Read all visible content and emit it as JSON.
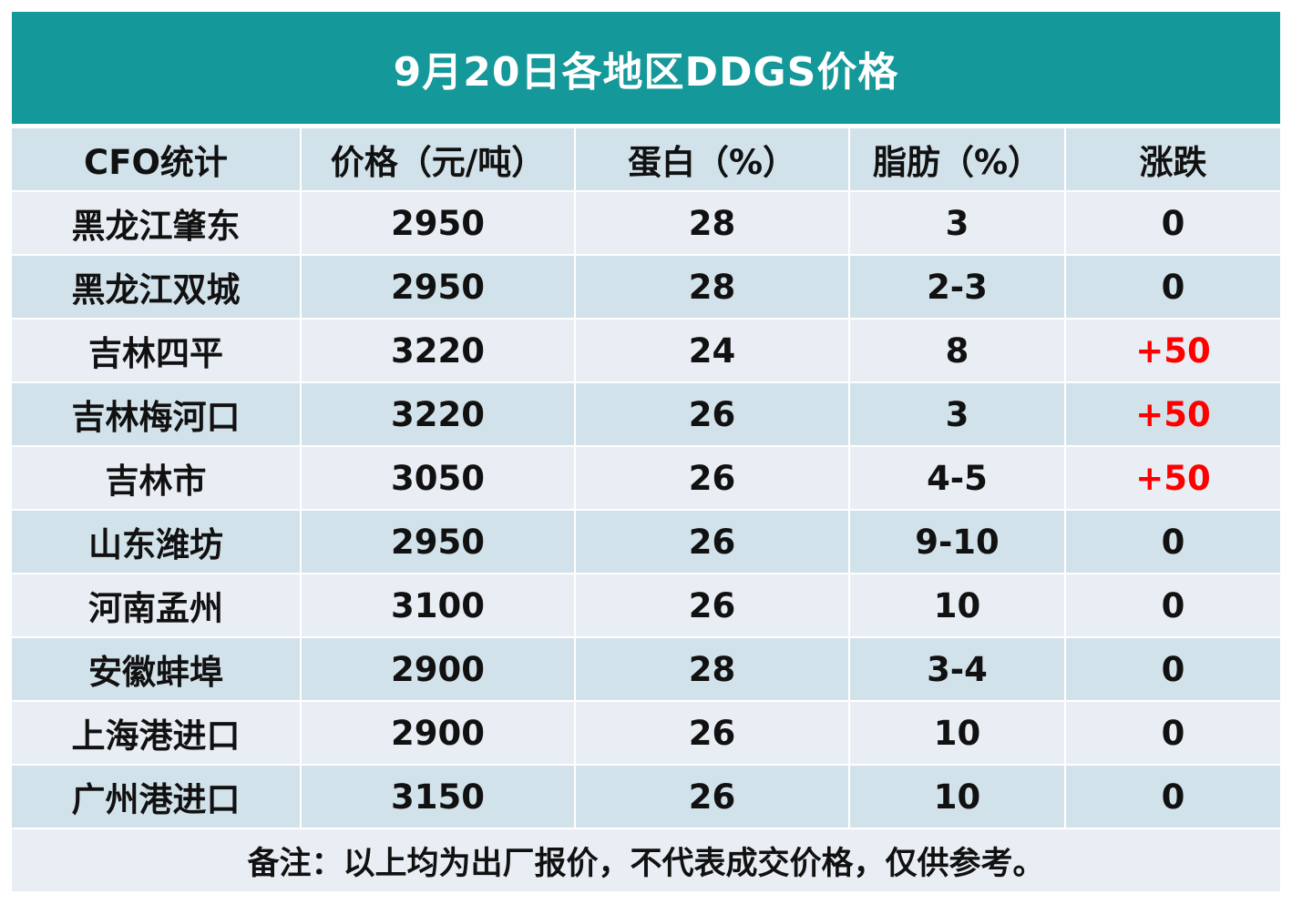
{
  "title": "9月20日各地区DDGS价格",
  "columns": [
    "CFO统计",
    "价格（元/吨）",
    "蛋白（%）",
    "脂肪（%）",
    "涨跌"
  ],
  "rows": [
    {
      "region": "黑龙江肇东",
      "price": "2950",
      "protein": "28",
      "fat": "3",
      "change": "0"
    },
    {
      "region": "黑龙江双城",
      "price": "2950",
      "protein": "28",
      "fat": "2-3",
      "change": "0"
    },
    {
      "region": "吉林四平",
      "price": "3220",
      "protein": "24",
      "fat": "8",
      "change": "+50"
    },
    {
      "region": "吉林梅河口",
      "price": "3220",
      "protein": "26",
      "fat": "3",
      "change": "+50"
    },
    {
      "region": "吉林市",
      "price": "3050",
      "protein": "26",
      "fat": "4-5",
      "change": "+50"
    },
    {
      "region": "山东潍坊",
      "price": "2950",
      "protein": "26",
      "fat": "9-10",
      "change": "0"
    },
    {
      "region": "河南孟州",
      "price": "3100",
      "protein": "26",
      "fat": "10",
      "change": "0"
    },
    {
      "region": "安徽蚌埠",
      "price": "2900",
      "protein": "28",
      "fat": "3-4",
      "change": "0"
    },
    {
      "region": "上海港进口",
      "price": "2900",
      "protein": "26",
      "fat": "10",
      "change": "0"
    },
    {
      "region": "广州港进口",
      "price": "3150",
      "protein": "26",
      "fat": "10",
      "change": "0"
    }
  ],
  "note": "备注：以上均为出厂报价，不代表成交价格，仅供参考。",
  "colors": {
    "title_bg": "#15989a",
    "row_light": "#e9eef4",
    "row_dark": "#d2e2ea",
    "increase_text": "#ff0000"
  }
}
